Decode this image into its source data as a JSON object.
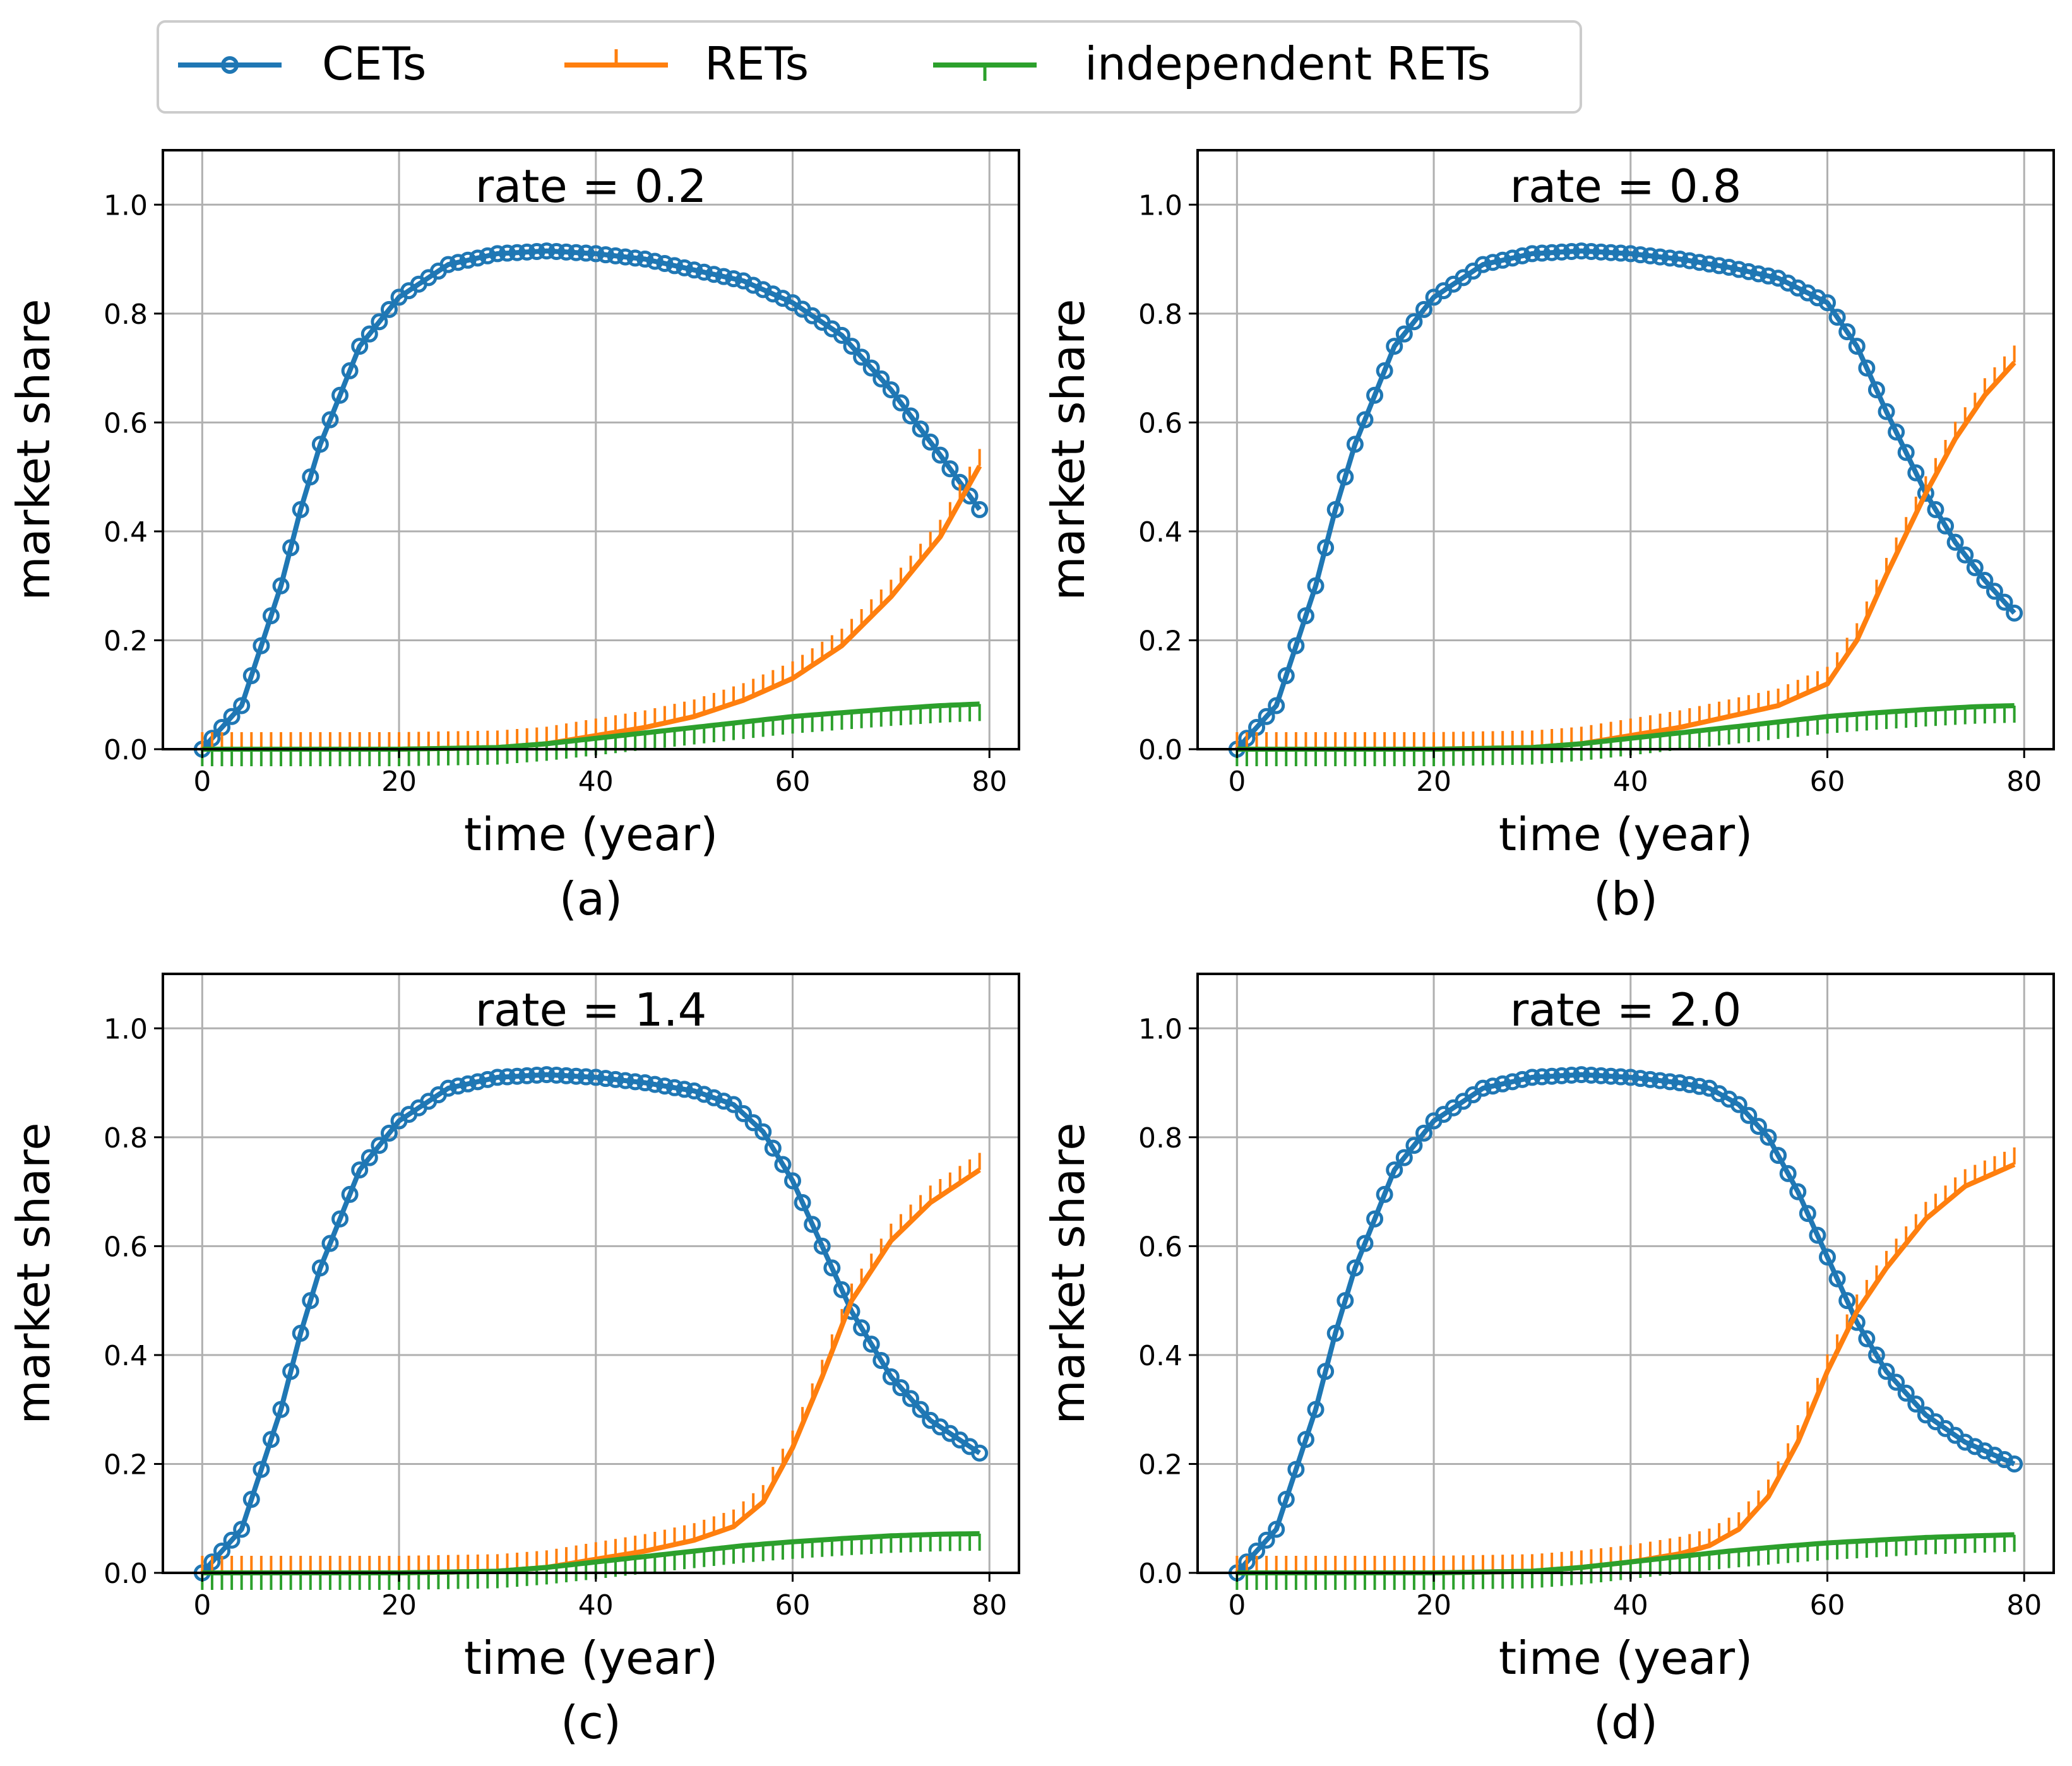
{
  "legend": {
    "items": [
      {
        "label": "CETs",
        "color": "#1f77b4",
        "marker": "circle"
      },
      {
        "label": "RETs",
        "color": "#ff7f0e",
        "marker": "tick-up"
      },
      {
        "label": "independent RETs",
        "color": "#2ca02c",
        "marker": "tick-down"
      }
    ]
  },
  "chart_data": [
    {
      "type": "line",
      "title": "rate = 0.2",
      "caption": "(a)",
      "xlabel": "time (year)",
      "ylabel": "market share",
      "xlim": [
        -4,
        83
      ],
      "ylim": [
        0,
        1.1
      ],
      "xticks": [
        "0",
        "20",
        "40",
        "60",
        "80"
      ],
      "yticks": [
        "0.0",
        "0.2",
        "0.4",
        "0.6",
        "0.8",
        "1.0"
      ],
      "grid": true,
      "series": [
        {
          "name": "CETs",
          "color": "#1f77b4",
          "x": [
            0,
            4,
            8,
            10,
            12,
            16,
            20,
            25,
            30,
            35,
            40,
            45,
            50,
            55,
            60,
            65,
            70,
            75,
            79
          ],
          "y": [
            0.0,
            0.08,
            0.3,
            0.44,
            0.56,
            0.74,
            0.83,
            0.89,
            0.91,
            0.915,
            0.91,
            0.9,
            0.88,
            0.86,
            0.82,
            0.76,
            0.66,
            0.54,
            0.44
          ]
        },
        {
          "name": "RETs",
          "color": "#ff7f0e",
          "x": [
            0,
            10,
            20,
            30,
            35,
            40,
            45,
            50,
            55,
            60,
            65,
            70,
            75,
            79
          ],
          "y": [
            0.0,
            0.0,
            0.0,
            0.003,
            0.01,
            0.025,
            0.04,
            0.06,
            0.09,
            0.13,
            0.19,
            0.28,
            0.39,
            0.52
          ]
        },
        {
          "name": "independent RETs",
          "color": "#2ca02c",
          "x": [
            0,
            10,
            20,
            30,
            35,
            40,
            45,
            50,
            55,
            60,
            65,
            70,
            75,
            79
          ],
          "y": [
            0.0,
            0.0,
            0.0,
            0.003,
            0.01,
            0.02,
            0.03,
            0.04,
            0.05,
            0.06,
            0.067,
            0.074,
            0.08,
            0.083
          ]
        }
      ]
    },
    {
      "type": "line",
      "title": "rate = 0.8",
      "caption": "(b)",
      "xlabel": "time (year)",
      "ylabel": "market share",
      "xlim": [
        -4,
        83
      ],
      "ylim": [
        0,
        1.1
      ],
      "xticks": [
        "0",
        "20",
        "40",
        "60",
        "80"
      ],
      "yticks": [
        "0.0",
        "0.2",
        "0.4",
        "0.6",
        "0.8",
        "1.0"
      ],
      "grid": true,
      "series": [
        {
          "name": "CETs",
          "color": "#1f77b4",
          "x": [
            0,
            4,
            8,
            10,
            12,
            16,
            20,
            25,
            30,
            35,
            40,
            45,
            50,
            55,
            60,
            63,
            66,
            70,
            73,
            76,
            79
          ],
          "y": [
            0.0,
            0.08,
            0.3,
            0.44,
            0.56,
            0.74,
            0.83,
            0.89,
            0.91,
            0.915,
            0.91,
            0.9,
            0.885,
            0.865,
            0.82,
            0.74,
            0.62,
            0.47,
            0.38,
            0.31,
            0.25
          ]
        },
        {
          "name": "RETs",
          "color": "#ff7f0e",
          "x": [
            0,
            10,
            20,
            30,
            35,
            40,
            45,
            50,
            55,
            60,
            63,
            66,
            70,
            73,
            76,
            79
          ],
          "y": [
            0.0,
            0.0,
            0.0,
            0.003,
            0.01,
            0.025,
            0.04,
            0.06,
            0.08,
            0.12,
            0.2,
            0.32,
            0.47,
            0.57,
            0.65,
            0.71
          ]
        },
        {
          "name": "independent RETs",
          "color": "#2ca02c",
          "x": [
            0,
            10,
            20,
            30,
            35,
            40,
            45,
            50,
            55,
            60,
            65,
            70,
            75,
            79
          ],
          "y": [
            0.0,
            0.0,
            0.0,
            0.003,
            0.01,
            0.02,
            0.03,
            0.04,
            0.05,
            0.06,
            0.067,
            0.073,
            0.078,
            0.08
          ]
        }
      ]
    },
    {
      "type": "line",
      "title": "rate = 1.4",
      "caption": "(c)",
      "xlabel": "time (year)",
      "ylabel": "market share",
      "xlim": [
        -4,
        83
      ],
      "ylim": [
        0,
        1.1
      ],
      "xticks": [
        "0",
        "20",
        "40",
        "60",
        "80"
      ],
      "yticks": [
        "0.0",
        "0.2",
        "0.4",
        "0.6",
        "0.8",
        "1.0"
      ],
      "grid": true,
      "series": [
        {
          "name": "CETs",
          "color": "#1f77b4",
          "x": [
            0,
            4,
            8,
            10,
            12,
            16,
            20,
            25,
            30,
            35,
            40,
            45,
            50,
            54,
            57,
            60,
            63,
            66,
            70,
            74,
            79
          ],
          "y": [
            0.0,
            0.08,
            0.3,
            0.44,
            0.56,
            0.74,
            0.83,
            0.89,
            0.91,
            0.915,
            0.91,
            0.9,
            0.885,
            0.86,
            0.81,
            0.72,
            0.6,
            0.48,
            0.36,
            0.28,
            0.22
          ]
        },
        {
          "name": "RETs",
          "color": "#ff7f0e",
          "x": [
            0,
            10,
            20,
            30,
            35,
            40,
            45,
            50,
            54,
            57,
            60,
            63,
            66,
            70,
            74,
            79
          ],
          "y": [
            0.0,
            0.0,
            0.0,
            0.003,
            0.01,
            0.025,
            0.04,
            0.06,
            0.085,
            0.13,
            0.23,
            0.36,
            0.5,
            0.61,
            0.68,
            0.74
          ]
        },
        {
          "name": "independent RETs",
          "color": "#2ca02c",
          "x": [
            0,
            10,
            20,
            30,
            35,
            40,
            45,
            50,
            55,
            60,
            65,
            70,
            75,
            79
          ],
          "y": [
            0.0,
            0.0,
            0.0,
            0.003,
            0.01,
            0.02,
            0.03,
            0.04,
            0.05,
            0.057,
            0.063,
            0.068,
            0.071,
            0.072
          ]
        }
      ]
    },
    {
      "type": "line",
      "title": "rate = 2.0",
      "caption": "(d)",
      "xlabel": "time (year)",
      "ylabel": "market share",
      "xlim": [
        -4,
        83
      ],
      "ylim": [
        0,
        1.1
      ],
      "xticks": [
        "0",
        "20",
        "40",
        "60",
        "80"
      ],
      "yticks": [
        "0.0",
        "0.2",
        "0.4",
        "0.6",
        "0.8",
        "1.0"
      ],
      "grid": true,
      "series": [
        {
          "name": "CETs",
          "color": "#1f77b4",
          "x": [
            0,
            4,
            8,
            10,
            12,
            16,
            20,
            25,
            30,
            35,
            40,
            45,
            48,
            51,
            54,
            57,
            60,
            63,
            66,
            70,
            74,
            79
          ],
          "y": [
            0.0,
            0.08,
            0.3,
            0.44,
            0.56,
            0.74,
            0.83,
            0.89,
            0.91,
            0.915,
            0.91,
            0.9,
            0.89,
            0.86,
            0.8,
            0.7,
            0.58,
            0.46,
            0.37,
            0.29,
            0.24,
            0.2
          ]
        },
        {
          "name": "RETs",
          "color": "#ff7f0e",
          "x": [
            0,
            10,
            20,
            30,
            35,
            40,
            45,
            48,
            51,
            54,
            57,
            60,
            63,
            66,
            70,
            74,
            79
          ],
          "y": [
            0.0,
            0.0,
            0.0,
            0.003,
            0.01,
            0.02,
            0.035,
            0.05,
            0.08,
            0.14,
            0.24,
            0.37,
            0.48,
            0.56,
            0.65,
            0.71,
            0.75
          ]
        },
        {
          "name": "independent RETs",
          "color": "#2ca02c",
          "x": [
            0,
            10,
            20,
            30,
            35,
            40,
            45,
            50,
            55,
            60,
            65,
            70,
            75,
            79
          ],
          "y": [
            0.0,
            0.0,
            0.0,
            0.003,
            0.01,
            0.02,
            0.03,
            0.04,
            0.048,
            0.055,
            0.06,
            0.065,
            0.068,
            0.07
          ]
        }
      ]
    }
  ]
}
